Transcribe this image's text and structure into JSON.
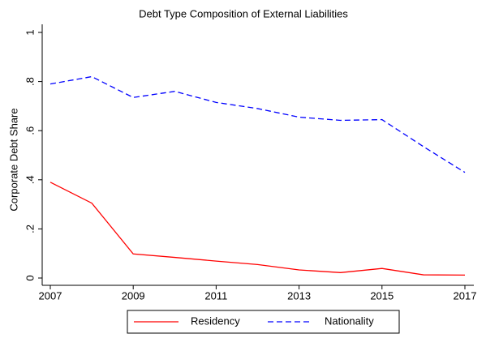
{
  "chart_data": {
    "type": "line",
    "title": "Debt Type Composition of External Liabilities",
    "y_label": "Corporate Debt Share",
    "x": [
      2007,
      2008,
      2009,
      2010,
      2011,
      2012,
      2013,
      2014,
      2015,
      2016,
      2017
    ],
    "series": [
      {
        "name": "Residency",
        "color": "#ff0000",
        "linestyle": "solid",
        "values": [
          0.39,
          0.305,
          0.098,
          0.084,
          0.069,
          0.055,
          0.033,
          0.022,
          0.039,
          0.013,
          0.012
        ]
      },
      {
        "name": "Nationality",
        "color": "#0000ff",
        "linestyle": "dashed",
        "values": [
          0.79,
          0.82,
          0.735,
          0.76,
          0.715,
          0.69,
          0.655,
          0.642,
          0.645,
          0.535,
          0.43
        ]
      }
    ],
    "xlim": [
      2007,
      2017
    ],
    "xticks": [
      2007,
      2009,
      2011,
      2013,
      2015,
      2017
    ],
    "ylim": [
      0,
      1
    ],
    "yticks": [
      0,
      {
        "value": 0.2,
        "label": ".2"
      },
      {
        "value": 0.4,
        "label": ".4"
      },
      {
        "value": 0.6,
        "label": ".6"
      },
      {
        "value": 0.8,
        "label": ".8"
      },
      1
    ],
    "grid": false,
    "legend": "bottom"
  }
}
